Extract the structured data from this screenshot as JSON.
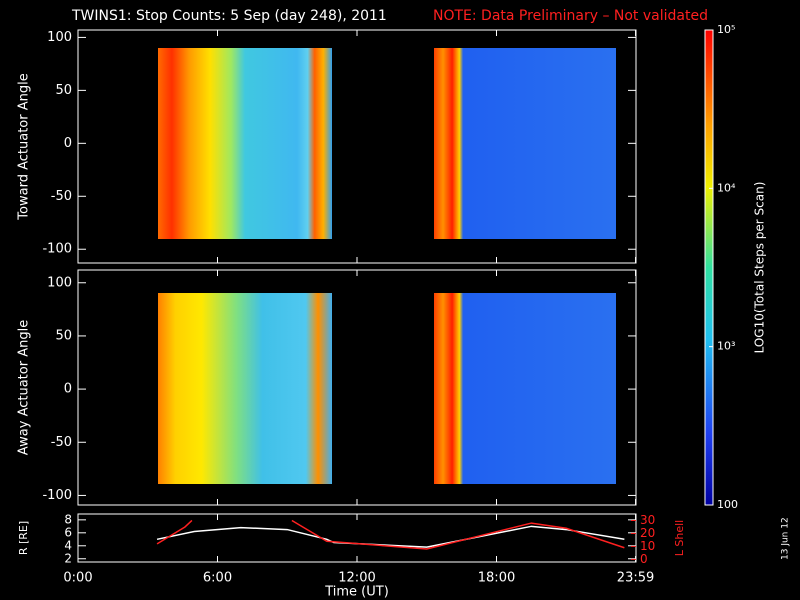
{
  "title": "TWINS1: Stop Counts:  5 Sep (day 248), 2011",
  "note": "NOTE: Data Preliminary – Not validated",
  "stamp": "13 Jun 12",
  "chart_data": [
    {
      "type": "heatmap",
      "ylabel": "Toward Actuator Angle",
      "ylim": [
        -113,
        107
      ],
      "yticks": [
        100,
        50,
        0,
        -50,
        -100
      ],
      "xlim": [
        0,
        24
      ]
    },
    {
      "type": "heatmap",
      "ylabel": "Away Actuator Angle",
      "ylim": [
        -109,
        112
      ],
      "yticks": [
        100,
        50,
        0,
        -50,
        -100
      ],
      "xlim": [
        0,
        24
      ]
    },
    {
      "type": "line",
      "xlabel": "Time (UT)",
      "ylabel": "R [RE]",
      "y2label": "L Shell",
      "xlim": [
        0,
        24
      ],
      "xticks": [
        {
          "value": 0,
          "label": "0:00"
        },
        {
          "value": 6,
          "label": "6:00"
        },
        {
          "value": 12,
          "label": "12:00"
        },
        {
          "value": 18,
          "label": "18:00"
        },
        {
          "value": 23.98,
          "label": "23:59"
        }
      ],
      "ylim": [
        1.5,
        8.9
      ],
      "yticks": [
        2,
        4,
        6,
        8
      ],
      "y2lim": [
        -2,
        35
      ],
      "y2ticks": [
        0,
        10,
        20,
        30
      ],
      "series": [
        {
          "name": "R",
          "color": "#ffffff",
          "x": [
            3.4,
            5,
            7,
            9,
            10.7,
            11,
            15,
            16,
            19.5,
            21,
            23.5
          ],
          "values": [
            5,
            6.2,
            6.8,
            6.5,
            5,
            4.5,
            3.8,
            4.5,
            7,
            6.5,
            5
          ]
        },
        {
          "name": "L Shell",
          "color": "#ff2020",
          "axis": "y2",
          "x": [
            3.4,
            4.6,
            4.9,
            7,
            9.2,
            10.7,
            15,
            19.5,
            21,
            23.5
          ],
          "values": [
            12,
            25,
            30,
            null,
            30,
            14,
            8,
            28,
            24,
            9
          ]
        }
      ]
    },
    {
      "type": "colorbar",
      "label": "LOG10(Total Steps per Scan)",
      "log": true,
      "ylim": [
        100,
        100000
      ],
      "yticks": [
        {
          "value": 100000,
          "label": "10⁵"
        },
        {
          "value": 10000,
          "label": "10⁴"
        },
        {
          "value": 1000,
          "label": "10³"
        },
        100
      ]
    }
  ]
}
